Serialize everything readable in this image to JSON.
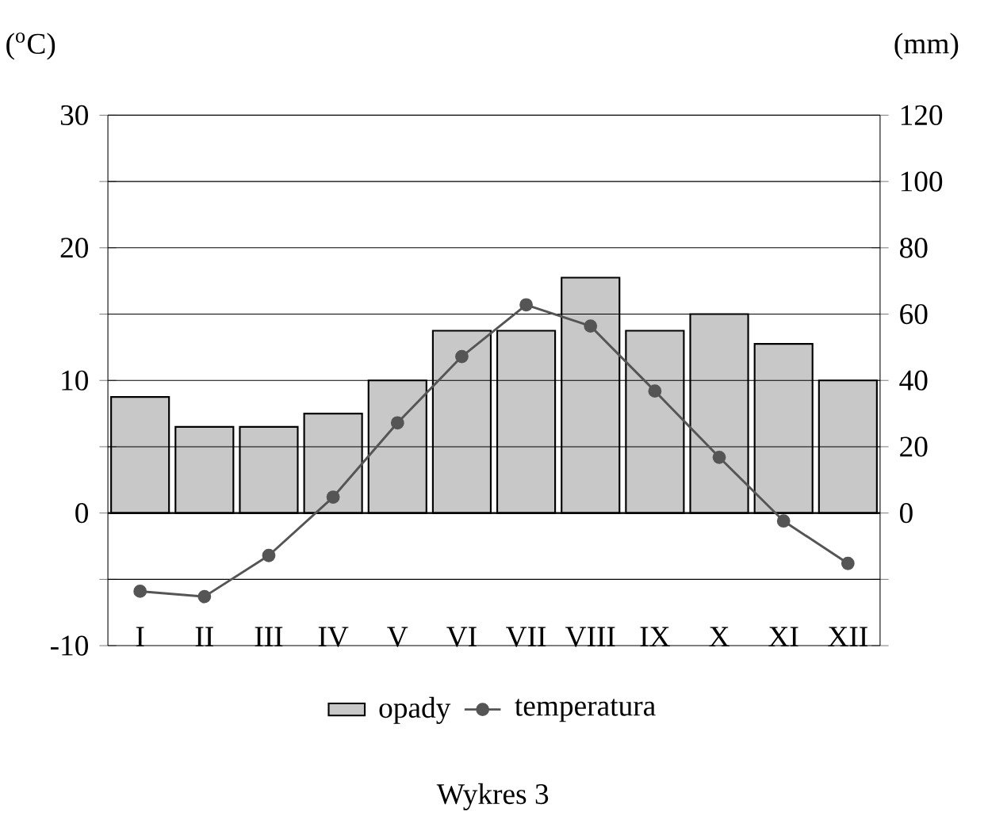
{
  "chart_data": {
    "type": "bar",
    "ylabel": "($^{o}$C)",
    "y2label": "(mm)",
    "categories": [
      "I",
      "II",
      "III",
      "IV",
      "V",
      "VI",
      "VII",
      "VIII",
      "IX",
      "X",
      "XI",
      "XII"
    ],
    "series": [
      {
        "name": "opady",
        "axis": "y2",
        "color": "#c8c8c8",
        "values": [
          35,
          26,
          26,
          30,
          40,
          55,
          55,
          71,
          55,
          60,
          51,
          40
        ]
      },
      {
        "name": "temperatura",
        "type": "line",
        "color": "#555555",
        "values": [
          -5.9,
          -6.3,
          -3.2,
          1.2,
          6.8,
          11.8,
          15.7,
          14.1,
          9.2,
          4.2,
          -0.6,
          -3.8
        ]
      }
    ],
    "ylim": [
      -10,
      30
    ],
    "yticks": [
      {
        "value": -10,
        "label": "-10"
      },
      {
        "value": -5,
        "label": null
      },
      0,
      {
        "value": 5,
        "label": null
      },
      10,
      {
        "value": 15,
        "label": null
      },
      20,
      {
        "value": 25,
        "label": null
      },
      30
    ],
    "y2lim": [
      -40,
      120
    ],
    "y2ticks": [
      {
        "value": -40,
        "label": null
      },
      {
        "value": -20,
        "label": null
      },
      0,
      20,
      40,
      60,
      80,
      100,
      120
    ],
    "grid": "y",
    "legend": "bottom",
    "marker": "circle",
    "annotations": [
      "Wykres 3"
    ]
  }
}
